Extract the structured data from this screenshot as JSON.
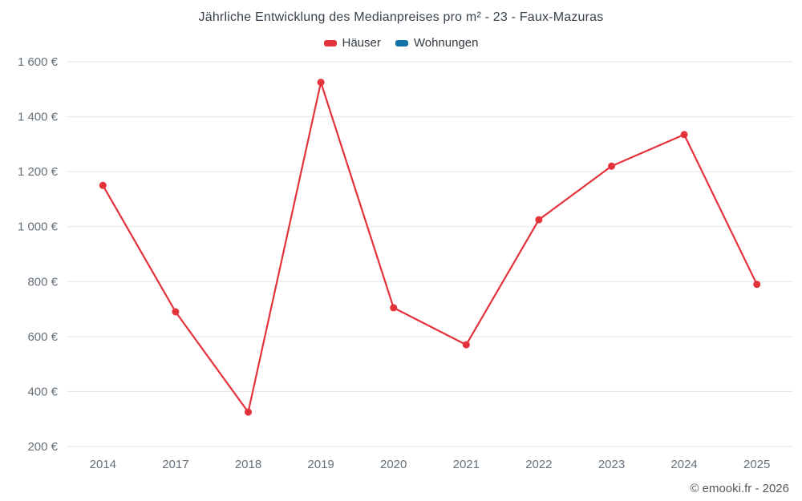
{
  "chart_data": {
    "type": "line",
    "title": "Jährliche Entwicklung des Medianpreises pro m² - 23 - Faux-Mazuras",
    "categories": [
      "2014",
      "2017",
      "2018",
      "2019",
      "2020",
      "2021",
      "2022",
      "2023",
      "2024",
      "2025"
    ],
    "series": [
      {
        "name": "Häuser",
        "color": "#e4323b",
        "values": [
          1150,
          690,
          325,
          1525,
          705,
          570,
          1025,
          1220,
          1335,
          790
        ]
      },
      {
        "name": "Wohnungen",
        "color": "#1271a7",
        "values": []
      }
    ],
    "xlabel": "",
    "ylabel": "",
    "ylim": [
      200,
      1600
    ],
    "y_ticks": [
      {
        "value": 200,
        "label": "200 €"
      },
      {
        "value": 400,
        "label": "400 €"
      },
      {
        "value": 600,
        "label": "600 €"
      },
      {
        "value": 800,
        "label": "800 €"
      },
      {
        "value": 1000,
        "label": "1 000 €"
      },
      {
        "value": 1200,
        "label": "1 200 €"
      },
      {
        "value": 1400,
        "label": "1 400 €"
      },
      {
        "value": 1600,
        "label": "1 600 €"
      }
    ],
    "grid": "horizontal",
    "grid_color": "#e6e6e6",
    "tick_label_color": "#66707a",
    "legend_position": "top-center",
    "marker": "circle"
  },
  "footer": {
    "credit": "© emooki.fr - 2026"
  }
}
